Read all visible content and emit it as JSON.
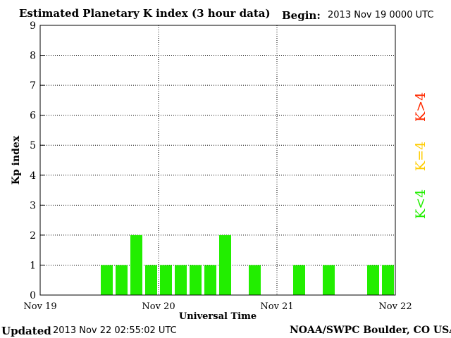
{
  "header": {
    "title": "Estimated Planetary K index (3 hour data)",
    "begin_label": "Begin:",
    "begin_value": "2013 Nov 19 0000 UTC"
  },
  "footer": {
    "updated_label": "Updated",
    "updated_value": "2013 Nov 22 02:55:02 UTC",
    "credit": "NOAA/SWPC Boulder, CO USA"
  },
  "legend": {
    "high": {
      "label": "K>4",
      "color": "#ff2a00"
    },
    "equal": {
      "label": "K=4",
      "color": "#ffcc00"
    },
    "low": {
      "label": "K<4",
      "color": "#22ee00"
    }
  },
  "chart_data": {
    "type": "bar",
    "title": "Estimated Planetary K index (3 hour data)",
    "xlabel": "Universal Time",
    "ylabel": "Kp index",
    "ylim": [
      0,
      9
    ],
    "yticks": [
      "0",
      "1",
      "2",
      "3",
      "4",
      "5",
      "6",
      "7",
      "8",
      "9"
    ],
    "xticks": [
      "Nov 19",
      "Nov 20",
      "Nov 21",
      "Nov 22"
    ],
    "grid": true,
    "bar_color": "#22ee00",
    "x_interval_hours": 3,
    "x_start": "2013 Nov 19 00:00 UTC",
    "x_end": "2013 Nov 22 00:00 UTC",
    "values": [
      null,
      null,
      null,
      null,
      1,
      1,
      2,
      1,
      1,
      1,
      1,
      1,
      2,
      null,
      1,
      null,
      null,
      1,
      null,
      1,
      null,
      null,
      1,
      1
    ]
  }
}
